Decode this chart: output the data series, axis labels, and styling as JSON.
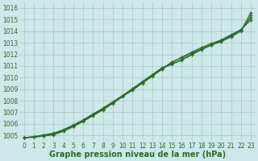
{
  "xlabel": "Graphe pression niveau de la mer (hPa)",
  "x_values": [
    0,
    1,
    2,
    3,
    4,
    5,
    6,
    7,
    8,
    9,
    10,
    11,
    12,
    13,
    14,
    15,
    16,
    17,
    18,
    19,
    20,
    21,
    22,
    23
  ],
  "lines": [
    {
      "y": [
        1004.8,
        1004.9,
        1005.05,
        1005.2,
        1005.5,
        1005.9,
        1006.35,
        1006.85,
        1007.35,
        1007.9,
        1008.45,
        1009.05,
        1009.65,
        1010.25,
        1010.85,
        1011.2,
        1011.55,
        1012.0,
        1012.45,
        1012.8,
        1013.15,
        1013.6,
        1014.05,
        1015.6
      ],
      "color": "#2d6a2d",
      "marker": "+"
    },
    {
      "y": [
        1004.8,
        1004.9,
        1005.0,
        1005.15,
        1005.45,
        1005.85,
        1006.3,
        1006.8,
        1007.3,
        1007.85,
        1008.4,
        1009.0,
        1009.6,
        1010.2,
        1010.8,
        1011.15,
        1011.5,
        1011.95,
        1012.4,
        1012.8,
        1013.1,
        1013.5,
        1014.0,
        1015.35
      ],
      "color": "#2d6a2d",
      "marker": "+"
    },
    {
      "y": [
        1004.8,
        1004.85,
        1004.95,
        1005.1,
        1005.4,
        1005.8,
        1006.25,
        1006.75,
        1007.25,
        1007.8,
        1008.4,
        1008.95,
        1009.55,
        1010.15,
        1010.75,
        1011.35,
        1011.7,
        1012.1,
        1012.5,
        1012.85,
        1013.2,
        1013.65,
        1014.1,
        1015.15
      ],
      "color": "#2d6a2d",
      "marker": "+"
    },
    {
      "y": [
        1004.8,
        1004.85,
        1004.95,
        1005.05,
        1005.35,
        1005.75,
        1006.2,
        1006.7,
        1007.2,
        1007.75,
        1008.35,
        1008.9,
        1009.5,
        1010.1,
        1010.7,
        1011.3,
        1011.75,
        1012.2,
        1012.6,
        1012.95,
        1013.25,
        1013.7,
        1014.15,
        1014.95
      ],
      "color": "#2d6a2d",
      "marker": "+"
    }
  ],
  "ylim": [
    1004.5,
    1016.5
  ],
  "xlim": [
    -0.5,
    23.5
  ],
  "yticks": [
    1005,
    1006,
    1007,
    1008,
    1009,
    1010,
    1011,
    1012,
    1013,
    1014,
    1015,
    1016
  ],
  "xticks": [
    0,
    1,
    2,
    3,
    4,
    5,
    6,
    7,
    8,
    9,
    10,
    11,
    12,
    13,
    14,
    15,
    16,
    17,
    18,
    19,
    20,
    21,
    22,
    23
  ],
  "bg_color": "#cce8e8",
  "grid_color": "#aac8c8",
  "line_color": "#2d6a2d",
  "label_color": "#2d6a2d",
  "tick_fontsize": 5.5,
  "xlabel_fontsize": 7,
  "marker_size": 3,
  "linewidth": 0.8,
  "markeredgewidth": 0.9
}
